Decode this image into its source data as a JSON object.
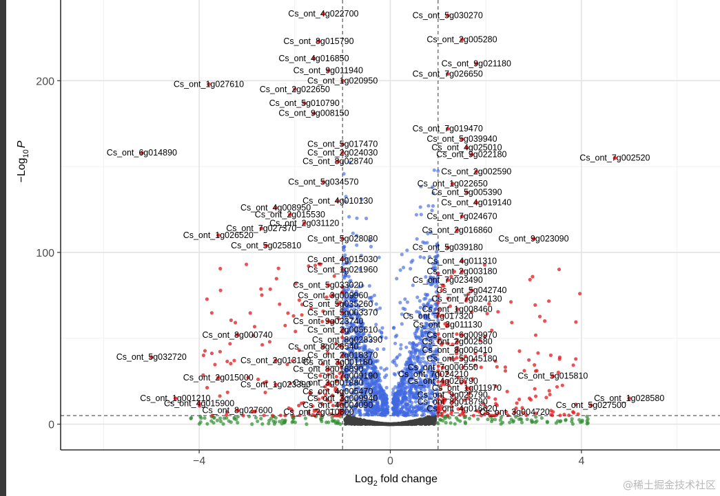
{
  "chart_data": {
    "type": "scatter",
    "title": "",
    "xlabel_main": "Log",
    "xlabel_sub": "2",
    "xlabel_rest": " fold change",
    "ylabel_prefix": "−Log",
    "ylabel_sub": "10",
    "ylabel_var": "P",
    "xlim": [
      -6.9,
      6.9
    ],
    "ylim": [
      -15,
      247
    ],
    "xticks": [
      -4,
      0,
      4
    ],
    "xtick_labels": [
      "−4",
      "0",
      "4"
    ],
    "yticks": [
      0,
      100,
      200
    ],
    "ytick_labels": [
      "0",
      "100",
      "200"
    ],
    "grid": true,
    "fc_cutoff": 1,
    "p_cutoff": 5,
    "colors": {
      "ns": "#3f3f3f",
      "log2fc": "#2e8b2e",
      "p": "#4169e1",
      "p_and_log2fc": "#e31a1c"
    },
    "labeled_genes": [
      {
        "label": "Cs_ont_4g022700",
        "x": -1.4,
        "y": 239
      },
      {
        "label": "Cs_ont_5g030270",
        "x": 1.2,
        "y": 238
      },
      {
        "label": "Cs_ont_8g015790",
        "x": -1.5,
        "y": 223
      },
      {
        "label": "Cs_ont_2g005280",
        "x": 1.5,
        "y": 224
      },
      {
        "label": "Cs_ont_4g016850",
        "x": -1.6,
        "y": 213
      },
      {
        "label": "Cs_ont_9g021180",
        "x": 1.8,
        "y": 210
      },
      {
        "label": "Cs_ont_9g011940",
        "x": -1.3,
        "y": 206
      },
      {
        "label": "Cs_ont_7g026650",
        "x": 1.2,
        "y": 204
      },
      {
        "label": "Cs_ont_1g020950",
        "x": -1.0,
        "y": 200
      },
      {
        "label": "Cs_ont_1g027610",
        "x": -3.8,
        "y": 198
      },
      {
        "label": "Cs_ont_2g022650",
        "x": -2.0,
        "y": 195
      },
      {
        "label": "Cs_ont_5g010790",
        "x": -1.8,
        "y": 187
      },
      {
        "label": "Cs_ont_9g008150",
        "x": -1.6,
        "y": 181
      },
      {
        "label": "Cs_ont_7g019470",
        "x": 1.2,
        "y": 172
      },
      {
        "label": "Cs_ont_5g039940",
        "x": 1.5,
        "y": 166
      },
      {
        "label": "Cs_ont_5g017470",
        "x": -1.0,
        "y": 163
      },
      {
        "label": "Cs_ont_4g025010",
        "x": 1.6,
        "y": 161
      },
      {
        "label": "Cs_ont_2g024030",
        "x": -1.0,
        "y": 158
      },
      {
        "label": "Cs_ont_6g014890",
        "x": -5.2,
        "y": 158
      },
      {
        "label": "Cs_ont_9g022180",
        "x": 1.7,
        "y": 157
      },
      {
        "label": "Cs_ont_7g002520",
        "x": 4.7,
        "y": 155
      },
      {
        "label": "Cs_ont_8g028740",
        "x": -1.1,
        "y": 153
      },
      {
        "label": "Cs_ont_2g002590",
        "x": 1.8,
        "y": 147
      },
      {
        "label": "Cs_ont_5g034570",
        "x": -1.4,
        "y": 141
      },
      {
        "label": "Cs_ont_1g022650",
        "x": 1.3,
        "y": 140
      },
      {
        "label": "Cs_ont_5g005390",
        "x": 1.6,
        "y": 135
      },
      {
        "label": "Cs_ont_4g010130",
        "x": -1.1,
        "y": 130
      },
      {
        "label": "Cs_ont_4g019140",
        "x": 1.8,
        "y": 129
      },
      {
        "label": "Cs_ont_4g008950",
        "x": -2.4,
        "y": 126
      },
      {
        "label": "Cs_ont_2g015530",
        "x": -2.1,
        "y": 122
      },
      {
        "label": "Cs_ont_7g024670",
        "x": 1.5,
        "y": 121
      },
      {
        "label": "Cs_ont_2g031120",
        "x": -1.8,
        "y": 117
      },
      {
        "label": "Cs_ont_7g027370",
        "x": -2.7,
        "y": 114
      },
      {
        "label": "Cs_ont_2g016860",
        "x": 1.4,
        "y": 113
      },
      {
        "label": "Cs_ont_1g026520",
        "x": -3.6,
        "y": 110
      },
      {
        "label": "Cs_ont_5g028080",
        "x": -1.0,
        "y": 108
      },
      {
        "label": "Cs_ont_9g023090",
        "x": 3.0,
        "y": 108
      },
      {
        "label": "Cs_ont_5g025810",
        "x": -2.6,
        "y": 104
      },
      {
        "label": "Cs_ont_5g039180",
        "x": 1.2,
        "y": 103
      },
      {
        "label": "Cs_ont_4g015030",
        "x": -1.0,
        "y": 96
      },
      {
        "label": "Cs_ont_4g011310",
        "x": 1.5,
        "y": 95
      },
      {
        "label": "Cs_ont_1g021960",
        "x": -1.0,
        "y": 90
      },
      {
        "label": "Cs_ont_2g003180",
        "x": 1.5,
        "y": 89
      },
      {
        "label": "Cs_ont_7g023490",
        "x": 1.2,
        "y": 84
      },
      {
        "label": "Cs_ont_5g033020",
        "x": -1.3,
        "y": 81
      },
      {
        "label": "Cs_ont_5g042740",
        "x": 1.7,
        "y": 78
      },
      {
        "label": "Cs_ont_3g009960",
        "x": -1.2,
        "y": 75
      },
      {
        "label": "Cs_ont_7g024130",
        "x": 1.6,
        "y": 73
      },
      {
        "label": "Cs_ont_5g035260",
        "x": -1.1,
        "y": 70
      },
      {
        "label": "Cs_ont_1g008460",
        "x": 1.4,
        "y": 67
      },
      {
        "label": "Cs_ont_5g003370",
        "x": -1.0,
        "y": 65
      },
      {
        "label": "Cs_ont_7g017320",
        "x": 1.0,
        "y": 63
      },
      {
        "label": "Cs_ont_9g023740",
        "x": -1.3,
        "y": 60
      },
      {
        "label": "Cs_ont_3g011130",
        "x": 1.2,
        "y": 58
      },
      {
        "label": "Cs_ont_2g005610",
        "x": -1.0,
        "y": 55
      },
      {
        "label": "Cs_ont_8g000740",
        "x": -3.2,
        "y": 52
      },
      {
        "label": "Cs_ont_6g009970",
        "x": 1.5,
        "y": 52
      },
      {
        "label": "Cs_ont_8g028390",
        "x": -0.9,
        "y": 49
      },
      {
        "label": "Cs_ont_2g002580",
        "x": 1.4,
        "y": 48
      },
      {
        "label": "Cs_ont_8g026540",
        "x": -1.4,
        "y": 45
      },
      {
        "label": "Cs_ont_8g006410",
        "x": 1.4,
        "y": 43
      },
      {
        "label": "Cs_ont_2g018370",
        "x": -1.0,
        "y": 40
      },
      {
        "label": "Cs_ont_5g032720",
        "x": -5.0,
        "y": 39
      },
      {
        "label": "Cs_ont_5g045180",
        "x": 1.5,
        "y": 38
      },
      {
        "label": "Cs_ont_2g013180",
        "x": -2.4,
        "y": 37
      },
      {
        "label": "Cs_ont_3g001180",
        "x": -1.1,
        "y": 36
      },
      {
        "label": "Cs_ont_7g000550",
        "x": 1.1,
        "y": 33
      },
      {
        "label": "Cs_ont_8g018890",
        "x": -1.3,
        "y": 32
      },
      {
        "label": "Cs_ont_7g024210",
        "x": 0.9,
        "y": 29
      },
      {
        "label": "Cs_ont_7g009190",
        "x": -1.0,
        "y": 28
      },
      {
        "label": "Cs_ont_2g015000",
        "x": -3.6,
        "y": 27
      },
      {
        "label": "Cs_ont_5g015810",
        "x": 3.4,
        "y": 28
      },
      {
        "label": "Cs_ont_4g026790",
        "x": 1.1,
        "y": 25
      },
      {
        "label": "Cs_ont_3g001880",
        "x": -1.3,
        "y": 24
      },
      {
        "label": "Cs_ont_1g023390",
        "x": -2.4,
        "y": 23
      },
      {
        "label": "Cs_ont_1g011970",
        "x": 1.6,
        "y": 21
      },
      {
        "label": "Cs_ont_4g005470",
        "x": -1.1,
        "y": 19
      },
      {
        "label": "Cs_ont_9g025790",
        "x": 1.3,
        "y": 17
      },
      {
        "label": "Cs_ont_1g001210",
        "x": -4.5,
        "y": 15
      },
      {
        "label": "Cs_ont_1g028580",
        "x": 5.0,
        "y": 15
      },
      {
        "label": "Cs_ont_3g009940",
        "x": -1.0,
        "y": 15
      },
      {
        "label": "Cs_ont_4g015900",
        "x": -4.0,
        "y": 12
      },
      {
        "label": "Cs_ont_4g004090",
        "x": -1.1,
        "y": 11
      },
      {
        "label": "Cs_ont_8g018790",
        "x": 1.3,
        "y": 13
      },
      {
        "label": "Cs_ont_5g027500",
        "x": 4.2,
        "y": 11
      },
      {
        "label": "Cs_ont_4g016620",
        "x": 1.5,
        "y": 9
      },
      {
        "label": "Cs_ont_8g027600",
        "x": -3.2,
        "y": 8
      },
      {
        "label": "Cs_ont_2g010800",
        "x": -1.5,
        "y": 7
      },
      {
        "label": "Cs_ont_3g004720",
        "x": 2.6,
        "y": 7
      }
    ]
  },
  "watermark": "@稀土掘金技术社区"
}
